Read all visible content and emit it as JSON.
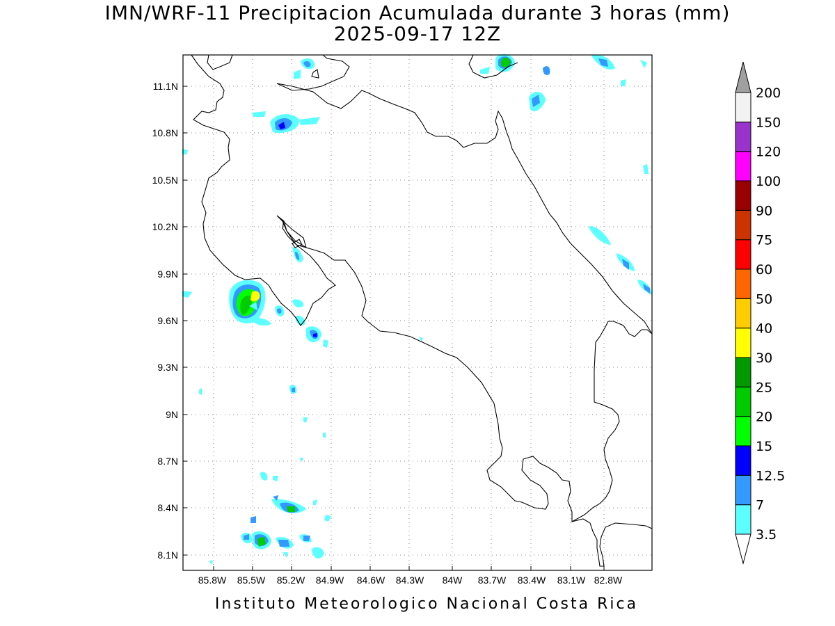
{
  "title": {
    "line1": "IMN/WRF-11 Precipitacion Acumulada durante 3 horas (mm)",
    "line2": "2025-09-17 12Z"
  },
  "footer": "Instituto Meteorologico Nacional Costa Rica",
  "axes": {
    "x_ticks": [
      "85.8W",
      "85.5W",
      "85.2W",
      "84.9W",
      "84.6W",
      "84.3W",
      "84W",
      "83.7W",
      "83.4W",
      "83.1W",
      "82.8W"
    ],
    "y_ticks": [
      "11.1N",
      "10.8N",
      "10.5N",
      "10.2N",
      "9.9N",
      "9.6N",
      "9.3N",
      "9N",
      "8.7N",
      "8.4N",
      "8.1N"
    ],
    "grid": "dotted"
  },
  "colorbar": {
    "labels": [
      "3.5",
      "7",
      "12.5",
      "15",
      "20",
      "25",
      "30",
      "40",
      "50",
      "60",
      "75",
      "90",
      "100",
      "120",
      "150",
      "200"
    ],
    "colors": [
      "#5cffff",
      "#3399ff",
      "#0000ff",
      "#00ff00",
      "#00cc00",
      "#009900",
      "#ffff00",
      "#ffcc00",
      "#ff6600",
      "#ff0000",
      "#cc3300",
      "#990000",
      "#ff00ff",
      "#9933cc",
      "#f2f2f2"
    ],
    "extend": "both",
    "arrow_top_color": "#a0a0a0",
    "arrow_bottom_color": "#ffffff"
  }
}
